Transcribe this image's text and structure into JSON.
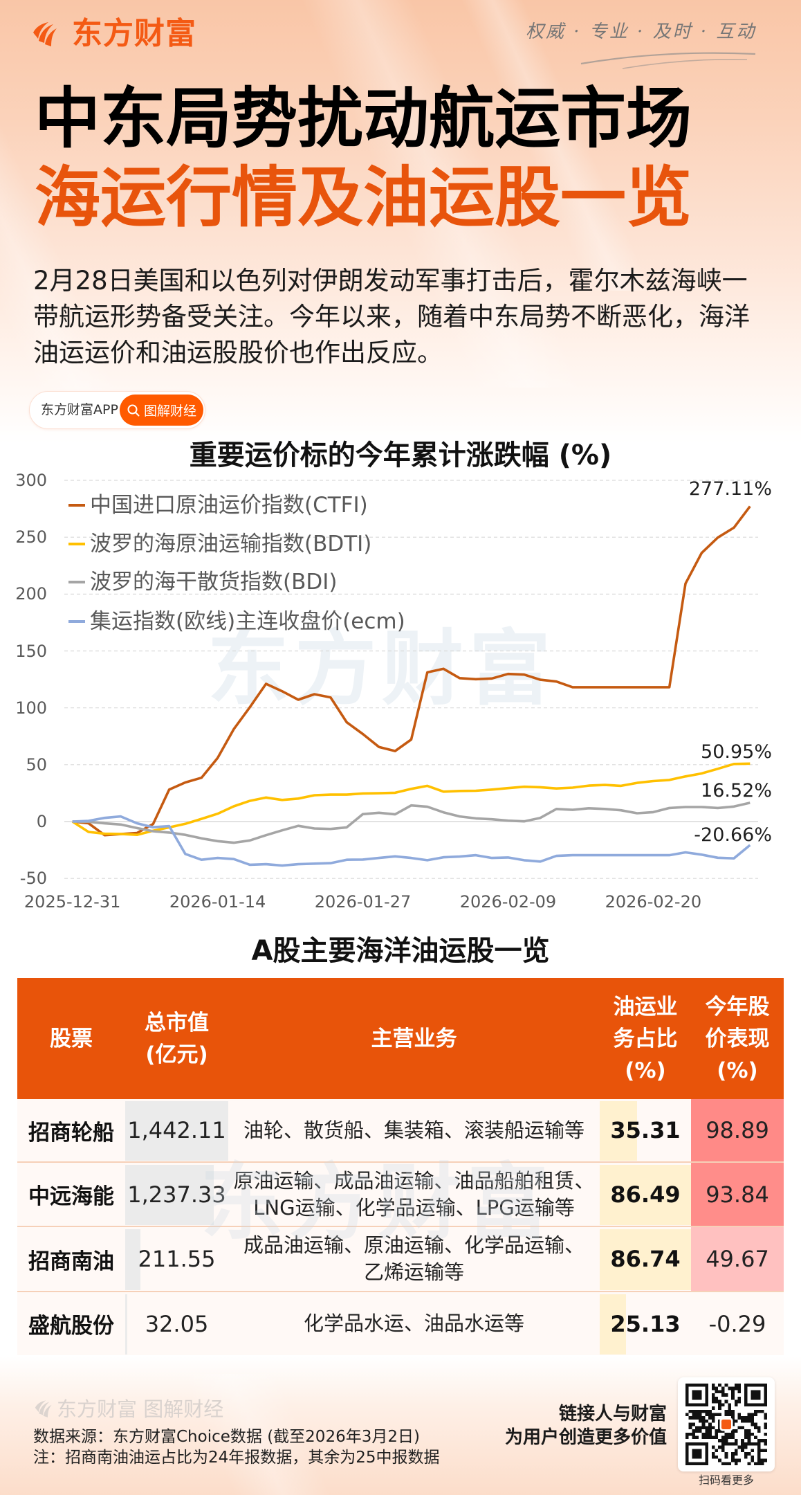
{
  "brand": {
    "name": "东方财富",
    "tagline": "权威 · 专业 · 及时 · 互动",
    "logo_icon": "eastmoney-flame-icon"
  },
  "title": {
    "line1": "中东局势扰动航运市场",
    "line2": "海运行情及油运股一览"
  },
  "intro": {
    "lines": [
      "2月28日美国和以色列对伊朗发动军事打击后，霍尔木兹海峡一",
      "带航运形势备受关注。今年以来，随着中东局势不断恶化，海洋",
      "油运运价和油运股股价也作出反应。"
    ]
  },
  "badge": {
    "app_label": "东方财富APP",
    "button_label": "图解财经",
    "button_icon": "search-icon"
  },
  "watermark": "东方财富",
  "chart_data": {
    "type": "line",
    "title": "重要运价标的今年累计涨跌幅 (%)",
    "xlabel": "",
    "ylabel": "",
    "ylim": [
      -50,
      300
    ],
    "yticks": [
      300,
      250,
      200,
      150,
      100,
      50,
      0,
      -50
    ],
    "x_count": 43,
    "xticks": [
      {
        "index": 0,
        "label": "2025-12-31"
      },
      {
        "index": 9,
        "label": "2026-01-14"
      },
      {
        "index": 18,
        "label": "2026-01-27"
      },
      {
        "index": 27,
        "label": "2026-02-09"
      },
      {
        "index": 36,
        "label": "2026-02-20"
      }
    ],
    "grid": true,
    "legend_position": "upper-left (inside plot)",
    "series": [
      {
        "name": "中国进口原油运价指数(CTFI)",
        "color": "#C55A11",
        "end_label": "277.11%",
        "values": [
          0,
          -1.5,
          -12.0,
          -11.0,
          -10.1,
          -2.2,
          28.1,
          34.4,
          38.5,
          55.9,
          81.2,
          100.5,
          121.1,
          114.6,
          107.1,
          112.0,
          109.2,
          87.3,
          77.0,
          65.6,
          62.0,
          72.1,
          131.2,
          134.3,
          126.1,
          125.2,
          125.8,
          129.8,
          129.2,
          124.7,
          123.1,
          118.1,
          118.1,
          118.1,
          118.1,
          118.1,
          118.1,
          118.1,
          209.2,
          236.2,
          249.7,
          258.4,
          277.11
        ]
      },
      {
        "name": "波罗的海原油运输指数(BDTI)",
        "color": "#FFC000",
        "end_label": "50.95%",
        "values": [
          0,
          -9.1,
          -10.7,
          -10.9,
          -11.7,
          -8.1,
          -5.1,
          -2.0,
          2.4,
          6.9,
          13.4,
          18.2,
          21.1,
          19.0,
          20.2,
          23.1,
          23.7,
          23.7,
          24.7,
          24.9,
          25.3,
          28.7,
          31.4,
          26.3,
          26.9,
          27.1,
          28.1,
          29.4,
          30.6,
          30.2,
          29.1,
          29.8,
          31.6,
          32.2,
          31.4,
          34.0,
          35.6,
          36.6,
          39.7,
          42.3,
          46.4,
          50.6,
          50.95
        ]
      },
      {
        "name": "波罗的海干散货指数(BDI)",
        "color": "#A5A5A5",
        "end_label": "16.52%",
        "values": [
          0,
          -0.2,
          -1.6,
          -2.6,
          -5.7,
          -8.5,
          -9.7,
          -11.7,
          -14.8,
          -17.2,
          -18.6,
          -16.6,
          -12.0,
          -7.7,
          -3.8,
          -6.1,
          -6.5,
          -5.1,
          6.5,
          7.7,
          6.3,
          14.2,
          13.0,
          8.1,
          4.5,
          2.8,
          2.0,
          0.8,
          0.2,
          3.2,
          11.1,
          10.3,
          11.7,
          11.1,
          9.9,
          7.3,
          8.3,
          11.9,
          12.8,
          12.8,
          11.9,
          13.2,
          16.52
        ]
      },
      {
        "name": "集运指数(欧线)主连收盘价(ecm)",
        "color": "#8FAADC",
        "end_label": "-20.66%",
        "values": [
          0,
          0.6,
          3.2,
          4.5,
          -1.5,
          -5.0,
          -4.0,
          -28.5,
          -33.6,
          -32.0,
          -33.0,
          -38.0,
          -37.5,
          -38.7,
          -37.5,
          -37.0,
          -36.6,
          -33.6,
          -33.4,
          -32.0,
          -30.6,
          -32.0,
          -34.0,
          -31.4,
          -30.8,
          -29.6,
          -32.0,
          -31.6,
          -34.0,
          -35.2,
          -30.2,
          -29.6,
          -29.6,
          -29.6,
          -29.6,
          -29.6,
          -29.6,
          -29.6,
          -27.1,
          -29.1,
          -31.8,
          -32.4,
          -20.66
        ]
      }
    ]
  },
  "table": {
    "title": "A股主要海洋油运股一览",
    "headers": [
      {
        "lines": [
          "股票"
        ]
      },
      {
        "lines": [
          "总市值",
          "(亿元)"
        ]
      },
      {
        "lines": [
          "主营业务"
        ]
      },
      {
        "lines": [
          "油运业",
          "务占比",
          "(%)"
        ]
      },
      {
        "lines": [
          "今年股",
          "价表现",
          "(%)"
        ]
      }
    ],
    "rows": [
      {
        "stock": "招商轮船",
        "market_cap": "1,442.11",
        "business": [
          "油轮、散货船、集装箱、滚装船运输等"
        ],
        "oil_share": "35.31",
        "ytd_change": "98.89",
        "ytd_color": "#FF8A87"
      },
      {
        "stock": "中远海能",
        "market_cap": "1,237.33",
        "business": [
          "原油运输、成品油运输、油品船舶租赁、",
          "LNG运输、化学品运输、LPG运输等"
        ],
        "oil_share": "86.49",
        "ytd_change": "93.84",
        "ytd_color": "#FF8D8A"
      },
      {
        "stock": "招商南油",
        "market_cap": "211.55",
        "business": [
          "成品油运输、原油运输、化学品运输、",
          "乙烯运输等"
        ],
        "oil_share": "86.74",
        "ytd_change": "49.67",
        "ytd_color": "#FFC1C0"
      },
      {
        "stock": "盛航股份",
        "market_cap": "32.05",
        "business": [
          "化学品水运、油品水运等"
        ],
        "oil_share": "25.13",
        "ytd_change": "-0.29",
        "ytd_color": "#FFF9F6"
      }
    ]
  },
  "footer": {
    "brand_faded": "东方财富 图解财经",
    "source": "数据来源：东方财富Choice数据 (截至2026年3月2日)",
    "note": "注：招商南油油运占比为24年报数据，其余为25中报数据",
    "slogan_lines": [
      "链接人与财富",
      "为用户创造更多价值"
    ],
    "qr_caption": "扫码看更多"
  },
  "colors": {
    "brand_orange": "#F45A14",
    "title_orange": "#E8540C",
    "table_header_bg": "#E8540A",
    "market_cap_bar": "#EBEBEB",
    "oil_share_bar": "#FFF1CF",
    "row_bg": "#FFF9F6"
  }
}
